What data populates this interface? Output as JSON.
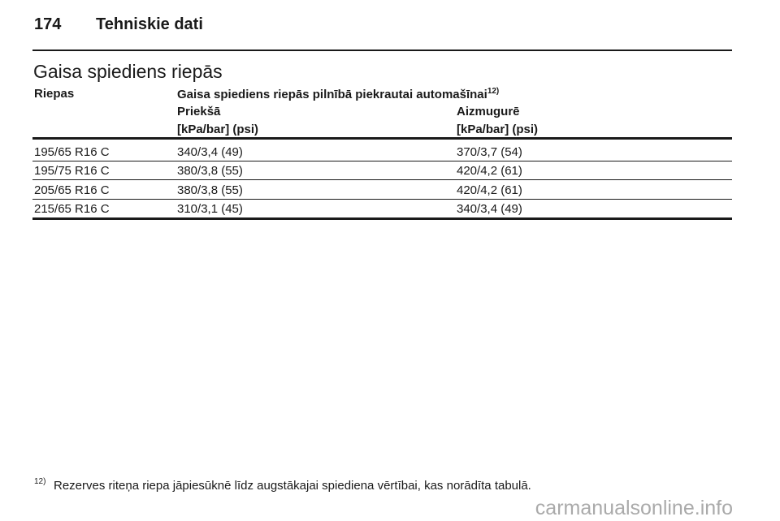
{
  "header": {
    "page_number": "174",
    "title": "Tehniskie dati"
  },
  "section_title": "Gaisa spiediens riepās",
  "table": {
    "header": {
      "tyres": "Riepas",
      "pressure": "Gaisa spiediens riepās pilnībā piekrautai automašīnai",
      "footnote_ref": "12)",
      "front": "Priekšā",
      "rear": "Aizmugurē",
      "front_unit": "[kPa/bar] (psi)",
      "rear_unit": "[kPa/bar] (psi)"
    },
    "rows": [
      [
        "195/65 R16 C",
        "340/3,4 (49)",
        "370/3,7 (54)"
      ],
      [
        "195/75 R16 C",
        "380/3,8 (55)",
        "420/4,2 (61)"
      ],
      [
        "205/65 R16 C",
        "380/3,8 (55)",
        "420/4,2 (61)"
      ],
      [
        "215/65 R16 C",
        "310/3,1 (45)",
        "340/3,4 (49)"
      ]
    ]
  },
  "footnote": {
    "marker": "12)",
    "text": "Rezerves riteņa riepa jāpiesūknē līdz augstākajai spiediena vērtībai, kas norādīta tabulā."
  },
  "watermark": "carmanualsonline.info"
}
